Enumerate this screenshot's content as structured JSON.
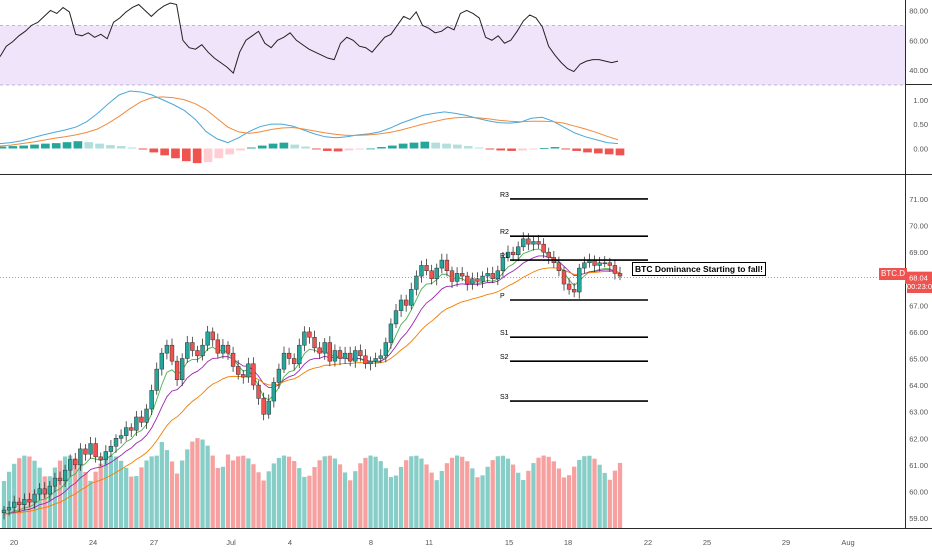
{
  "symbol_label": "BTC.D",
  "last_price_label": "68.04",
  "countdown_label": "00:23:02",
  "annotation": "BTC Dominance Starting to fall!",
  "chart_data": {
    "type": "candlestick",
    "price": {
      "ylim": [
        58.7,
        71.6
      ],
      "yticks": [
        "59.00",
        "60.00",
        "61.00",
        "62.00",
        "63.00",
        "64.00",
        "65.00",
        "66.00",
        "67.00",
        "68.00",
        "69.00",
        "70.00",
        "71.00"
      ],
      "last_price": 68.04,
      "closes": [
        59.3,
        59.4,
        59.6,
        59.5,
        59.7,
        59.6,
        59.9,
        60.1,
        59.9,
        60.2,
        60.5,
        60.4,
        60.8,
        61.2,
        61.0,
        61.6,
        61.4,
        61.8,
        61.3,
        61.2,
        61.5,
        61.7,
        62.0,
        62.1,
        62.4,
        62.3,
        62.8,
        62.6,
        63.1,
        63.8,
        64.6,
        65.2,
        65.5,
        64.9,
        64.2,
        65.0,
        65.6,
        65.3,
        65.1,
        65.5,
        66.0,
        65.7,
        65.2,
        65.5,
        65.2,
        64.7,
        64.4,
        64.3,
        64.8,
        64.0,
        63.5,
        62.9,
        63.4,
        64.1,
        64.6,
        65.2,
        65.0,
        64.8,
        65.5,
        66.0,
        65.8,
        65.4,
        65.2,
        65.6,
        64.9,
        65.3,
        65.0,
        65.2,
        64.9,
        65.3,
        65.1,
        64.8,
        64.9,
        65.0,
        65.1,
        65.6,
        66.3,
        66.8,
        67.2,
        67.0,
        67.6,
        68.1,
        68.5,
        68.3,
        68.0,
        68.4,
        68.7,
        68.3,
        67.9,
        68.2,
        68.1,
        67.8,
        68.0,
        67.9,
        68.1,
        68.2,
        68.0,
        68.3,
        68.8,
        69.0,
        68.9,
        69.2,
        69.5,
        69.3,
        69.4,
        69.3,
        69.0,
        68.8,
        68.6,
        68.3,
        67.8,
        67.6,
        67.5,
        68.4,
        68.6,
        68.7,
        68.5,
        68.6,
        68.6,
        68.5,
        68.2,
        68.1
      ],
      "x_tick_labels": [
        "20",
        "24",
        "27",
        "Jul",
        "4",
        "8",
        "11",
        "15",
        "18",
        "22",
        "25",
        "29",
        "Aug"
      ],
      "pivots": [
        {
          "label": "R3",
          "value": 71.0
        },
        {
          "label": "R2",
          "value": 69.6
        },
        {
          "label": "R1",
          "value": 68.7
        },
        {
          "label": "P",
          "value": 67.2
        },
        {
          "label": "S1",
          "value": 65.8
        },
        {
          "label": "S2",
          "value": 64.9
        },
        {
          "label": "S3",
          "value": 63.4
        }
      ]
    },
    "rsi": {
      "ylim": [
        32,
        85
      ],
      "yticks": [
        "40.00",
        "60.00",
        "80.00"
      ],
      "band": [
        30,
        70
      ],
      "values": [
        49,
        56,
        59,
        63,
        66,
        70,
        72,
        76,
        80,
        78,
        82,
        79,
        64,
        63,
        65,
        62,
        64,
        61,
        72,
        75,
        79,
        82,
        84,
        80,
        76,
        80,
        83,
        85,
        84,
        60,
        55,
        54,
        57,
        52,
        48,
        45,
        42,
        38,
        52,
        60,
        63,
        66,
        58,
        55,
        60,
        62,
        65,
        60,
        57,
        54,
        52,
        50,
        48,
        47,
        58,
        62,
        60,
        56,
        55,
        52,
        57,
        62,
        64,
        70,
        76,
        74,
        79,
        70,
        68,
        65,
        66,
        69,
        67,
        78,
        80,
        78,
        75,
        62,
        60,
        63,
        58,
        60,
        66,
        73,
        77,
        75,
        69,
        56,
        50,
        45,
        41,
        39,
        44,
        46,
        47,
        47,
        46,
        45,
        46
      ]
    },
    "macd": {
      "ylim": [
        -0.4,
        1.2
      ],
      "yticks": [
        "0.00",
        "0.50",
        "1.00"
      ],
      "macd_line": [
        0.1,
        0.12,
        0.16,
        0.22,
        0.28,
        0.33,
        0.38,
        0.44,
        0.55,
        0.72,
        0.92,
        1.1,
        1.18,
        1.16,
        1.1,
        1.0,
        0.9,
        0.78,
        0.6,
        0.35,
        0.2,
        0.12,
        0.22,
        0.35,
        0.45,
        0.5,
        0.5,
        0.46,
        0.38,
        0.3,
        0.24,
        0.22,
        0.24,
        0.28,
        0.3,
        0.34,
        0.42,
        0.52,
        0.6,
        0.68,
        0.72,
        0.75,
        0.72,
        0.68,
        0.62,
        0.57,
        0.53,
        0.52,
        0.54,
        0.62,
        0.64,
        0.56,
        0.44,
        0.32,
        0.24,
        0.18,
        0.12,
        0.1
      ],
      "signal_line": [
        0.05,
        0.07,
        0.1,
        0.13,
        0.17,
        0.21,
        0.24,
        0.28,
        0.33,
        0.4,
        0.52,
        0.66,
        0.82,
        0.96,
        1.04,
        1.06,
        1.04,
        1.0,
        0.92,
        0.8,
        0.62,
        0.44,
        0.34,
        0.31,
        0.34,
        0.39,
        0.42,
        0.43,
        0.4,
        0.36,
        0.32,
        0.29,
        0.27,
        0.27,
        0.28,
        0.3,
        0.33,
        0.38,
        0.44,
        0.5,
        0.55,
        0.6,
        0.63,
        0.64,
        0.63,
        0.61,
        0.58,
        0.56,
        0.55,
        0.56,
        0.56,
        0.55,
        0.52,
        0.46,
        0.4,
        0.33,
        0.25,
        0.18
      ],
      "histogram": [
        0.04,
        0.05,
        0.06,
        0.08,
        0.1,
        0.11,
        0.13,
        0.15,
        0.13,
        0.1,
        0.07,
        0.05,
        0.02,
        -0.02,
        -0.08,
        -0.14,
        -0.2,
        -0.26,
        -0.3,
        -0.28,
        -0.2,
        -0.12,
        -0.04,
        0.02,
        0.06,
        0.1,
        0.12,
        0.08,
        0.04,
        -0.02,
        -0.05,
        -0.06,
        -0.04,
        -0.02,
        0.0,
        0.03,
        0.06,
        0.1,
        0.12,
        0.14,
        0.12,
        0.1,
        0.08,
        0.05,
        0.02,
        -0.02,
        -0.04,
        -0.05,
        -0.04,
        -0.02,
        0.01,
        0.03,
        -0.02,
        -0.05,
        -0.08,
        -0.1,
        -0.12,
        -0.14
      ]
    }
  },
  "colors": {
    "up": "#26a69a",
    "down": "#ef5350",
    "rsi_line": "#222222",
    "rsi_band": "#f0e4fb",
    "macd_line": "#4aa8d8",
    "signal_line": "#f08a3c",
    "ema_green": "#4caf50",
    "ema_purple": "#9c27b0",
    "ema_orange": "#f57c00"
  }
}
